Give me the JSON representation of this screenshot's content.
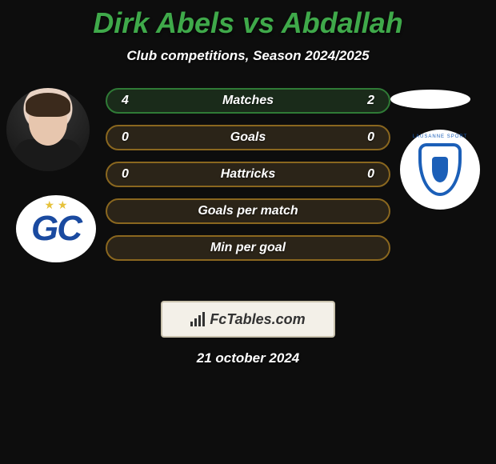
{
  "title": {
    "text": "Dirk Abels vs Abdallah",
    "color": "#3fa94a",
    "fontsize": 36
  },
  "subtitle": "Club competitions, Season 2024/2025",
  "stats": {
    "rows": [
      {
        "left": "4",
        "label": "Matches",
        "right": "2",
        "border": "#2f7a36",
        "bg": "#1a2b1a"
      },
      {
        "left": "0",
        "label": "Goals",
        "right": "0",
        "border": "#8a671f",
        "bg": "#2b2418"
      },
      {
        "left": "0",
        "label": "Hattricks",
        "right": "0",
        "border": "#8a671f",
        "bg": "#2b2418"
      },
      {
        "left": "",
        "label": "Goals per match",
        "right": "",
        "border": "#8a671f",
        "bg": "#2b2418"
      },
      {
        "left": "",
        "label": "Min per goal",
        "right": "",
        "border": "#8a671f",
        "bg": "#2b2418"
      }
    ]
  },
  "branding": {
    "label": "FcTables.com",
    "bg": "#f3f0e8",
    "border": "#c9c2ad",
    "text_color": "#333333"
  },
  "date": "21 october 2024",
  "colors": {
    "page_bg": "#0d0d0d",
    "text": "#ffffff"
  },
  "left_player": {
    "avatar_name": "player-avatar",
    "club_name": "left-club-badge",
    "club_letters": "GC",
    "club_primary": "#1a4aa0",
    "star_color": "#e6c23b"
  },
  "right_player": {
    "flag_name": "right-flag",
    "club_name": "right-club-badge",
    "club_ring": "LAUSANNE SPORT",
    "club_primary": "#1b5fb8"
  }
}
